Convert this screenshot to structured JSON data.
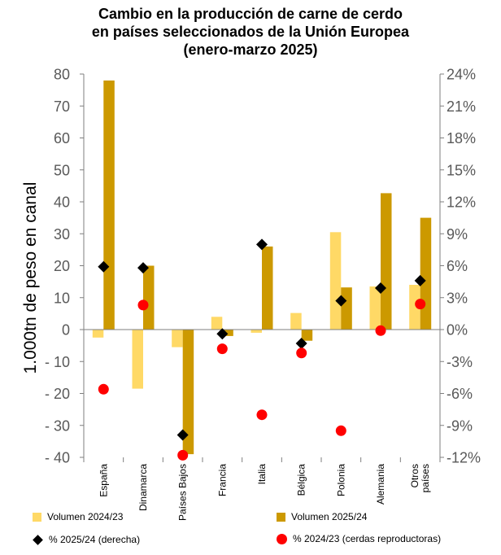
{
  "title_lines": [
    "Cambio en la producción de carne de cerdo",
    "en países seleccionados de la Unión Europea",
    "(enero-marzo 2025)"
  ],
  "chart_data": {
    "type": "bar",
    "title": "Cambio en la producción de carne de cerdo en países seleccionados de la Unión Europea (enero-marzo 2025)",
    "ylabel": "1.000tn de peso en canal",
    "ylim": [
      -40,
      80
    ],
    "y_ticks": [
      "80",
      "70",
      "60",
      "50",
      "40",
      "30",
      "20",
      "10",
      "0",
      "- 10",
      "- 20",
      "- 30",
      "- 40"
    ],
    "y2lim": [
      -12,
      24
    ],
    "y2_ticks": [
      "24%",
      "21%",
      "18%",
      "15%",
      "12%",
      "9%",
      "6%",
      "3%",
      "0%",
      "-3%",
      "-6%",
      "-9%",
      "-12%"
    ],
    "categories": [
      "España",
      "Dinamarca",
      "Países Bajos",
      "Francia",
      "Italia",
      "Bélgica",
      "Polonia",
      "Alemania",
      "Otros países"
    ],
    "bar_series": [
      {
        "name": "Volumen 2024/23",
        "color": "#FFD966",
        "values": [
          -2.5,
          -18.5,
          -5.5,
          4,
          -1,
          5.2,
          30.5,
          13.5,
          14
        ]
      },
      {
        "name": "Volumen 2025/24",
        "color": "#CC9900",
        "values": [
          78,
          20,
          -39,
          -2,
          26,
          -3.5,
          13.2,
          42.7,
          35
        ]
      }
    ],
    "point_series": [
      {
        "name": "% 2025/24 (derecha)",
        "marker": "diamond",
        "color": "#000000",
        "values": [
          5.9,
          5.8,
          -9.9,
          -0.4,
          8.0,
          -1.3,
          2.7,
          3.9,
          4.6
        ]
      },
      {
        "name": "% 2024/23 (cerdas reproductoras)",
        "marker": "circle",
        "color": "#FF0000",
        "values": [
          -5.6,
          2.3,
          -11.8,
          -1.8,
          -8.0,
          -2.2,
          -9.5,
          -0.1,
          2.4
        ]
      }
    ],
    "grid": false,
    "legend_position": "bottom"
  }
}
